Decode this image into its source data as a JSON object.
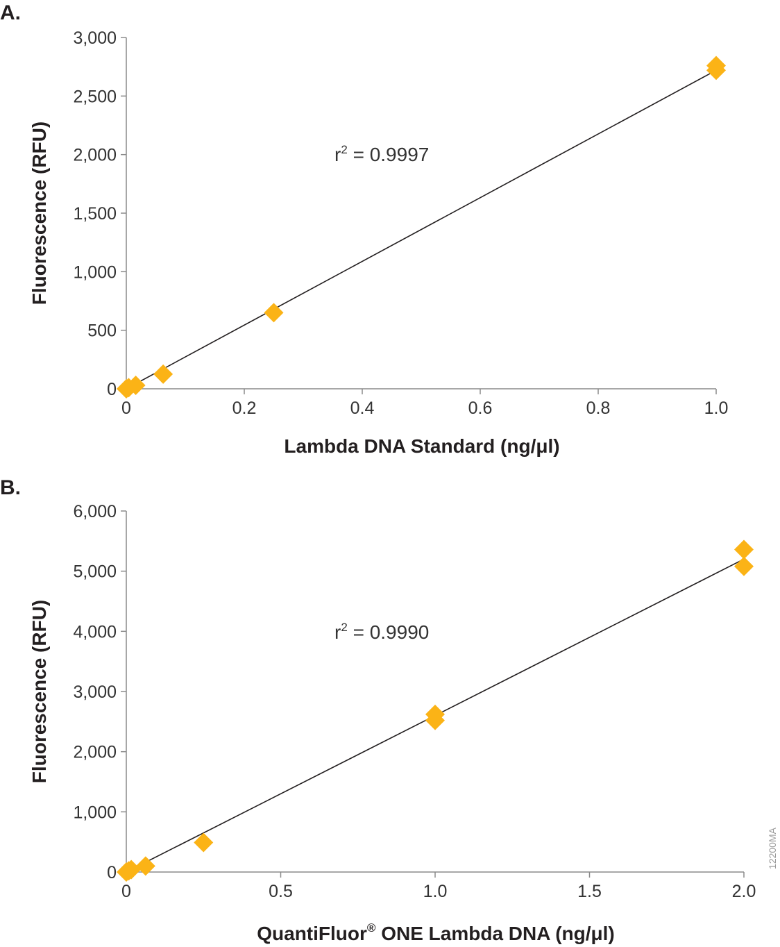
{
  "chart_data": [
    {
      "type": "scatter",
      "panel_label": "A.",
      "xlabel": "Lambda DNA Standard (ng/μl)",
      "ylabel": "Fluorescence (RFU)",
      "xlim": [
        0,
        1.0
      ],
      "ylim": [
        0,
        3000
      ],
      "xticks": [
        0,
        0.2,
        0.4,
        0.6,
        0.8,
        1.0
      ],
      "xtick_labels": [
        "0",
        "0.2",
        "0.4",
        "0.6",
        "0.8",
        "1.0"
      ],
      "yticks": [
        0,
        500,
        1000,
        1500,
        2000,
        2500,
        3000
      ],
      "ytick_labels": [
        "0",
        "500",
        "1,000",
        "1,500",
        "2,000",
        "2,500",
        "3,000"
      ],
      "grid": false,
      "marker_color": "#fbb316",
      "points": [
        {
          "x": 0,
          "y": 0
        },
        {
          "x": 0.004,
          "y": 10
        },
        {
          "x": 0.016,
          "y": 30
        },
        {
          "x": 0.0625,
          "y": 125
        },
        {
          "x": 0.25,
          "y": 650
        },
        {
          "x": 1.0,
          "y": 2720
        },
        {
          "x": 1.0,
          "y": 2760
        }
      ],
      "trendline": {
        "x": [
          0,
          1.0
        ],
        "y": [
          0,
          2720
        ]
      },
      "annotation": {
        "r": "r",
        "sup": "2",
        "text": " = 0.9997",
        "x": 0.36,
        "y": 2000
      }
    },
    {
      "type": "scatter",
      "panel_label": "B.",
      "xlabel_main": "QuantiFluor",
      "xlabel_sup": "®",
      "xlabel_rest": " ONE Lambda DNA (ng/μl)",
      "ylabel": "Fluorescence (RFU)",
      "xlim": [
        0,
        2.0
      ],
      "ylim": [
        0,
        6000
      ],
      "xticks": [
        0,
        0.5,
        1.0,
        1.5,
        2.0
      ],
      "xtick_labels": [
        "0",
        "0.5",
        "1.0",
        "1.5",
        "2.0"
      ],
      "yticks": [
        0,
        1000,
        2000,
        3000,
        4000,
        5000,
        6000
      ],
      "ytick_labels": [
        "0",
        "1,000",
        "2,000",
        "3,000",
        "4,000",
        "5,000",
        "6,000"
      ],
      "grid": false,
      "marker_color": "#fbb316",
      "points": [
        {
          "x": 0,
          "y": 0
        },
        {
          "x": 0.008,
          "y": 20
        },
        {
          "x": 0.016,
          "y": 40
        },
        {
          "x": 0.0625,
          "y": 100
        },
        {
          "x": 0.25,
          "y": 490
        },
        {
          "x": 1.0,
          "y": 2520
        },
        {
          "x": 1.0,
          "y": 2620
        },
        {
          "x": 2.0,
          "y": 5080
        },
        {
          "x": 2.0,
          "y": 5360
        }
      ],
      "trendline": {
        "x": [
          0,
          2.0
        ],
        "y": [
          0,
          5200
        ]
      },
      "annotation": {
        "r": "r",
        "sup": "2",
        "text": " = 0.9990",
        "x": 0.68,
        "y": 4000
      }
    }
  ],
  "figure_code": "12200MA"
}
